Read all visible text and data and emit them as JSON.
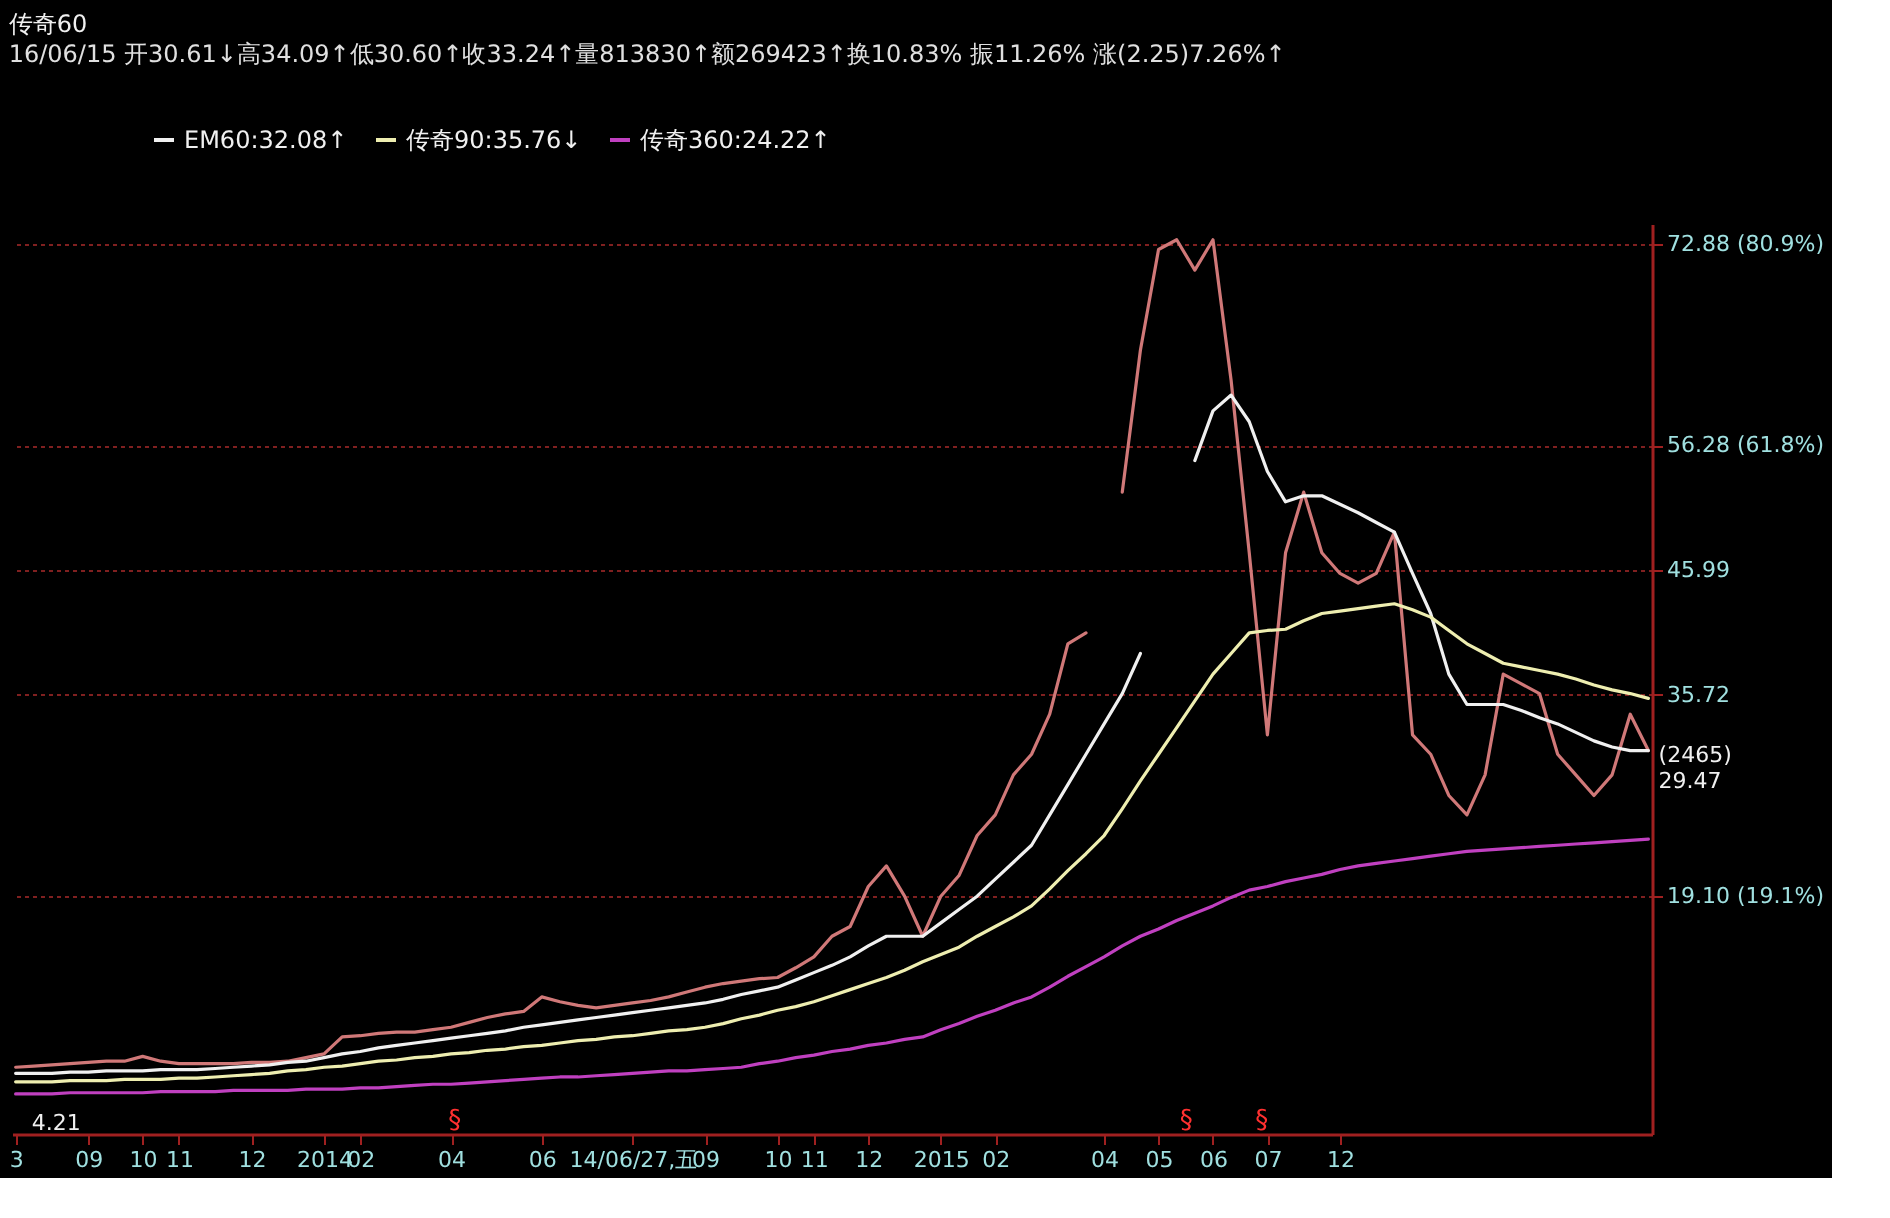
{
  "chart_data": {
    "type": "line",
    "title": "传奇60",
    "subtitle": "16/06/15 开30.61↓高34.09↑低30.60↑收33.24↑量813830↑额269423↑换10.83% 振11.26% 涨(2.25)7.26%↑",
    "categories": [
      "3",
      null,
      null,
      null,
      "09",
      null,
      null,
      "10",
      null,
      "11",
      null,
      null,
      null,
      "12",
      null,
      null,
      null,
      "2014",
      null,
      "02",
      null,
      null,
      null,
      null,
      "04",
      null,
      null,
      null,
      null,
      "06",
      null,
      null,
      null,
      null,
      "14/06/27,五",
      null,
      null,
      null,
      "09",
      null,
      null,
      null,
      "10",
      null,
      "11",
      null,
      null,
      "12",
      null,
      null,
      null,
      "2015",
      null,
      null,
      "02",
      null,
      null,
      null,
      null,
      null,
      "04",
      null,
      null,
      "05",
      null,
      null,
      "06",
      null,
      null,
      "07",
      null,
      null,
      null,
      "12",
      null,
      null,
      null,
      null,
      null,
      null,
      null,
      null,
      null,
      null,
      null,
      null,
      null,
      null,
      null,
      null,
      null
    ],
    "ylim": [
      -0.5,
      74.5
    ],
    "yticks": [
      {
        "value": 72.88,
        "label": "72.88 (80.9%)"
      },
      {
        "value": 56.28,
        "label": "56.28 (61.8%)"
      },
      45.99,
      35.72,
      {
        "value": 19.1,
        "label": "19.10 (19.1%)"
      }
    ],
    "grid": "y",
    "legend": "top left",
    "marker": "none",
    "line_style": "solid",
    "series": [
      {
        "color": "#d07878",
        "values": [
          5.0,
          5.1,
          5.2,
          5.3,
          5.4,
          5.5,
          5.5,
          5.9,
          5.5,
          5.3,
          5.3,
          5.3,
          5.3,
          5.4,
          5.4,
          5.5,
          5.8,
          6.1,
          7.5,
          7.6,
          7.8,
          7.9,
          7.9,
          8.1,
          8.3,
          8.7,
          9.1,
          9.4,
          9.6,
          10.8,
          10.4,
          10.1,
          9.9,
          10.1,
          10.3,
          10.5,
          10.8,
          11.2,
          11.6,
          11.9,
          12.1,
          12.3,
          12.4,
          13.2,
          14.1,
          15.8,
          16.6,
          19.9,
          21.6,
          19.1,
          15.8,
          19.1,
          20.8,
          24.1,
          25.8,
          29.1,
          30.8,
          34.1,
          39.9,
          40.8,
          null,
          52.4,
          64.1,
          72.4,
          73.2,
          70.7,
          73.2,
          61.6,
          47.4,
          32.4,
          47.4,
          52.4,
          47.4,
          45.7,
          44.9,
          45.7,
          49.1,
          32.4,
          30.8,
          27.4,
          25.8,
          29.1,
          37.4,
          36.6,
          35.8,
          30.8,
          29.1,
          27.4,
          29.1,
          34.1,
          31.1
        ]
      },
      {
        "name": "EM60:32.08↑",
        "color": "#f0f0f0",
        "values": [
          4.5,
          4.5,
          4.5,
          4.6,
          4.6,
          4.7,
          4.7,
          4.7,
          4.8,
          4.8,
          4.8,
          4.9,
          5.0,
          5.1,
          5.2,
          5.4,
          5.5,
          5.8,
          6.1,
          6.3,
          6.6,
          6.8,
          7.0,
          7.2,
          7.4,
          7.6,
          7.8,
          8.0,
          8.3,
          8.5,
          8.7,
          8.9,
          9.1,
          9.3,
          9.5,
          9.7,
          9.9,
          10.1,
          10.3,
          10.6,
          11.0,
          11.3,
          11.6,
          12.2,
          12.8,
          13.4,
          14.1,
          15.0,
          15.8,
          15.8,
          15.8,
          16.9,
          18.0,
          19.1,
          20.5,
          21.9,
          23.3,
          25.8,
          28.3,
          30.8,
          33.3,
          35.8,
          39.1,
          null,
          null,
          55.0,
          59.1,
          60.4,
          58.2,
          54.1,
          51.6,
          52.1,
          52.1,
          51.4,
          50.7,
          49.9,
          49.1,
          45.7,
          42.4,
          37.4,
          34.9,
          34.9,
          34.9,
          34.4,
          33.8,
          33.3,
          32.6,
          31.9,
          31.4,
          31.1,
          31.1
        ]
      },
      {
        "name": "传奇90:35.76↓",
        "color": "#eeeeb0",
        "values": [
          3.8,
          3.8,
          3.8,
          3.9,
          3.9,
          3.9,
          4.0,
          4.0,
          4.0,
          4.1,
          4.1,
          4.2,
          4.3,
          4.4,
          4.5,
          4.7,
          4.8,
          5.0,
          5.1,
          5.3,
          5.5,
          5.6,
          5.8,
          5.9,
          6.1,
          6.2,
          6.4,
          6.5,
          6.7,
          6.8,
          7.0,
          7.2,
          7.3,
          7.5,
          7.6,
          7.8,
          8.0,
          8.1,
          8.3,
          8.6,
          9.0,
          9.3,
          9.7,
          10.0,
          10.4,
          10.9,
          11.4,
          11.9,
          12.4,
          13.0,
          13.7,
          14.3,
          14.9,
          15.8,
          16.6,
          17.4,
          18.3,
          19.7,
          21.2,
          22.6,
          24.1,
          26.3,
          28.6,
          30.8,
          33.0,
          35.2,
          37.4,
          39.1,
          40.8,
          41.0,
          41.1,
          41.8,
          42.4,
          42.6,
          42.8,
          43.0,
          43.2,
          42.7,
          42.1,
          41.0,
          39.9,
          39.1,
          38.3,
          38.0,
          37.7,
          37.4,
          37.0,
          36.5,
          36.1,
          35.8,
          35.4
        ]
      },
      {
        "name": "传奇360:24.22↑",
        "color": "#c040c0",
        "values": [
          2.8,
          2.8,
          2.8,
          2.9,
          2.9,
          2.9,
          2.9,
          2.9,
          3.0,
          3.0,
          3.0,
          3.0,
          3.1,
          3.1,
          3.1,
          3.1,
          3.2,
          3.2,
          3.2,
          3.3,
          3.3,
          3.4,
          3.5,
          3.6,
          3.6,
          3.7,
          3.8,
          3.9,
          4.0,
          4.1,
          4.2,
          4.2,
          4.3,
          4.4,
          4.5,
          4.6,
          4.7,
          4.7,
          4.8,
          4.9,
          5.0,
          5.3,
          5.5,
          5.8,
          6.0,
          6.3,
          6.5,
          6.8,
          7.0,
          7.3,
          7.5,
          8.1,
          8.6,
          9.2,
          9.7,
          10.3,
          10.8,
          11.6,
          12.5,
          13.3,
          14.1,
          15.0,
          15.8,
          16.4,
          17.1,
          17.7,
          18.3,
          19.0,
          19.6,
          19.9,
          20.3,
          20.6,
          20.9,
          21.3,
          21.6,
          21.8,
          22.0,
          22.2,
          22.4,
          22.6,
          22.8,
          22.9,
          23.0,
          23.1,
          23.2,
          23.3,
          23.4,
          23.5,
          23.6,
          23.7,
          23.8
        ]
      }
    ],
    "annotations": [
      "4.21",
      "§",
      "§",
      "§",
      "(2465)\n29.47"
    ]
  }
}
